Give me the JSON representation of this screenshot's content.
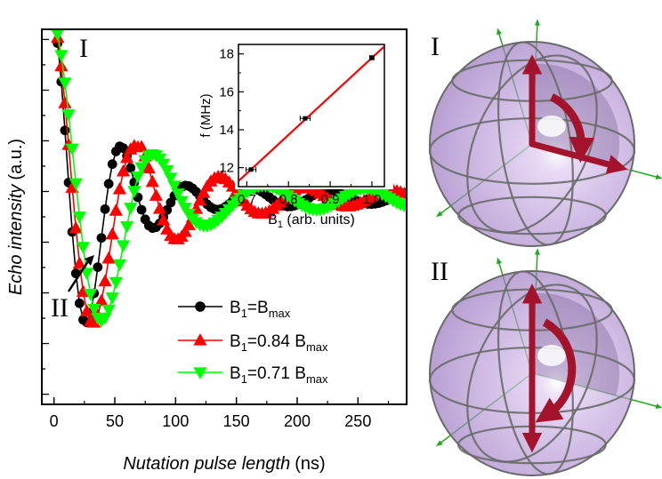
{
  "chart_data": [
    {
      "type": "line",
      "xlabel_italic": "Nutation pulse length",
      "xlabel_unit": "(ns)",
      "ylabel_italic": "Echo intensity",
      "ylabel_unit": "(a.u.)",
      "xlim": [
        -10,
        290
      ],
      "ylim": [
        -0.8,
        1.05
      ],
      "xticks": [
        0,
        50,
        100,
        150,
        200,
        250
      ],
      "y_tick_labels_shown": false,
      "legend_position": "bottom-center",
      "annotations": [
        {
          "text": "I",
          "x": 16,
          "y": 1.0
        },
        {
          "text": "II",
          "x": 28,
          "y": -0.2
        }
      ],
      "series": [
        {
          "name": "B1=Bmax",
          "name_parts": {
            "b": "B",
            "s1": "1",
            "mid": "=B",
            "s2": "max"
          },
          "color": "#000000",
          "marker": "circle",
          "freq_mhz": 17.8,
          "tau_ns": 45,
          "c_base": 0.09,
          "c_inf": 0.22
        },
        {
          "name": "B1=0.84 Bmax",
          "name_parts": {
            "b": "B",
            "s1": "1",
            "mid": "=0.84 B",
            "s2": "max"
          },
          "color": "#ff0000",
          "marker": "triangle-up",
          "freq_mhz": 14.6,
          "tau_ns": 55,
          "c_base": 0.09,
          "c_inf": 0.22
        },
        {
          "name": "B1=0.71 Bmax",
          "name_parts": {
            "b": "B",
            "s1": "1",
            "mid": "=0.71 B",
            "s2": "max"
          },
          "color": "#00ff00",
          "marker": "triangle-down",
          "freq_mhz": 11.9,
          "tau_ns": 65,
          "c_base": 0.09,
          "c_inf": 0.22
        }
      ]
    },
    {
      "type": "scatter",
      "xlabel_main": "B",
      "xlabel_sub": "1",
      "xlabel_rest": " (arb. units)",
      "ylabel": "f (MHz)",
      "xlim": [
        0.68,
        1.03
      ],
      "ylim": [
        11.0,
        18.5
      ],
      "xticks": [
        0.7,
        0.8,
        0.9,
        1.0
      ],
      "xtick_labels": [
        "0.7",
        "0.8",
        "0.9",
        "1.0"
      ],
      "yticks": [
        12,
        14,
        16,
        18
      ],
      "points": [
        {
          "x": 0.71,
          "y": 11.9,
          "xerr": 0.012,
          "yerr": 0.1
        },
        {
          "x": 0.84,
          "y": 14.6,
          "xerr": 0.012,
          "yerr": 0.1
        },
        {
          "x": 1.0,
          "y": 17.8,
          "xerr": 0.005,
          "yerr": 0.15
        }
      ],
      "fit_line": {
        "x": [
          0.68,
          1.03
        ],
        "y": [
          11.29,
          18.4
        ],
        "color": "#ff0000"
      }
    }
  ],
  "spheres": [
    {
      "label": "I"
    },
    {
      "label": "II"
    }
  ],
  "colors": {
    "sphere_fill": "#b794d6",
    "sphere_ring": "#6a6a6a",
    "vector": "#a3142c",
    "axis_green": "#22aa22"
  }
}
